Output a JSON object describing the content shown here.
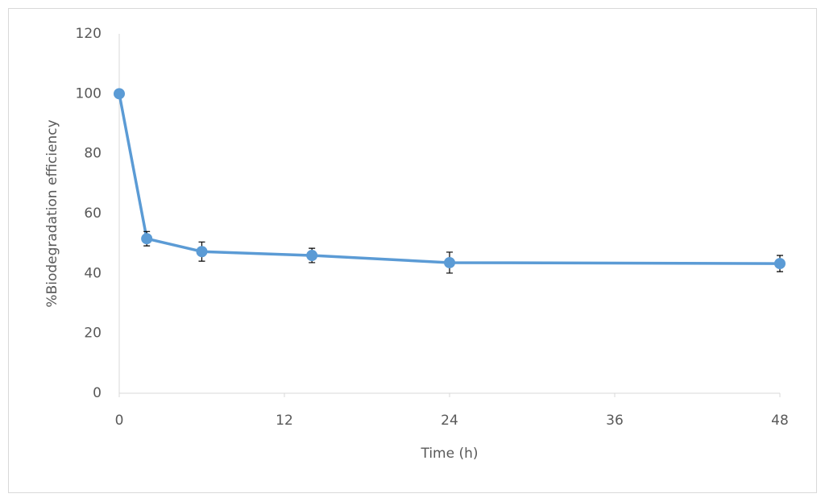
{
  "chart_data": {
    "type": "line",
    "x_label": "Time (h)",
    "y_label": "%Biodegradation efficiency",
    "x": [
      0,
      2,
      6,
      14,
      24,
      48
    ],
    "series": [
      {
        "name": "Biodegradation efficiency",
        "color": "#5b9bd5",
        "values": [
          100,
          51.6,
          47.3,
          46,
          43.6,
          43.3
        ],
        "errors": [
          0,
          2.4,
          3.2,
          2.4,
          3.5,
          2.7
        ]
      }
    ],
    "xlim": [
      0,
      48
    ],
    "xticks": [
      0,
      12,
      24,
      36,
      48
    ],
    "ylim": [
      0,
      120
    ],
    "yticks": [
      0,
      20,
      40,
      60,
      80,
      100,
      120
    ],
    "grid": false
  }
}
